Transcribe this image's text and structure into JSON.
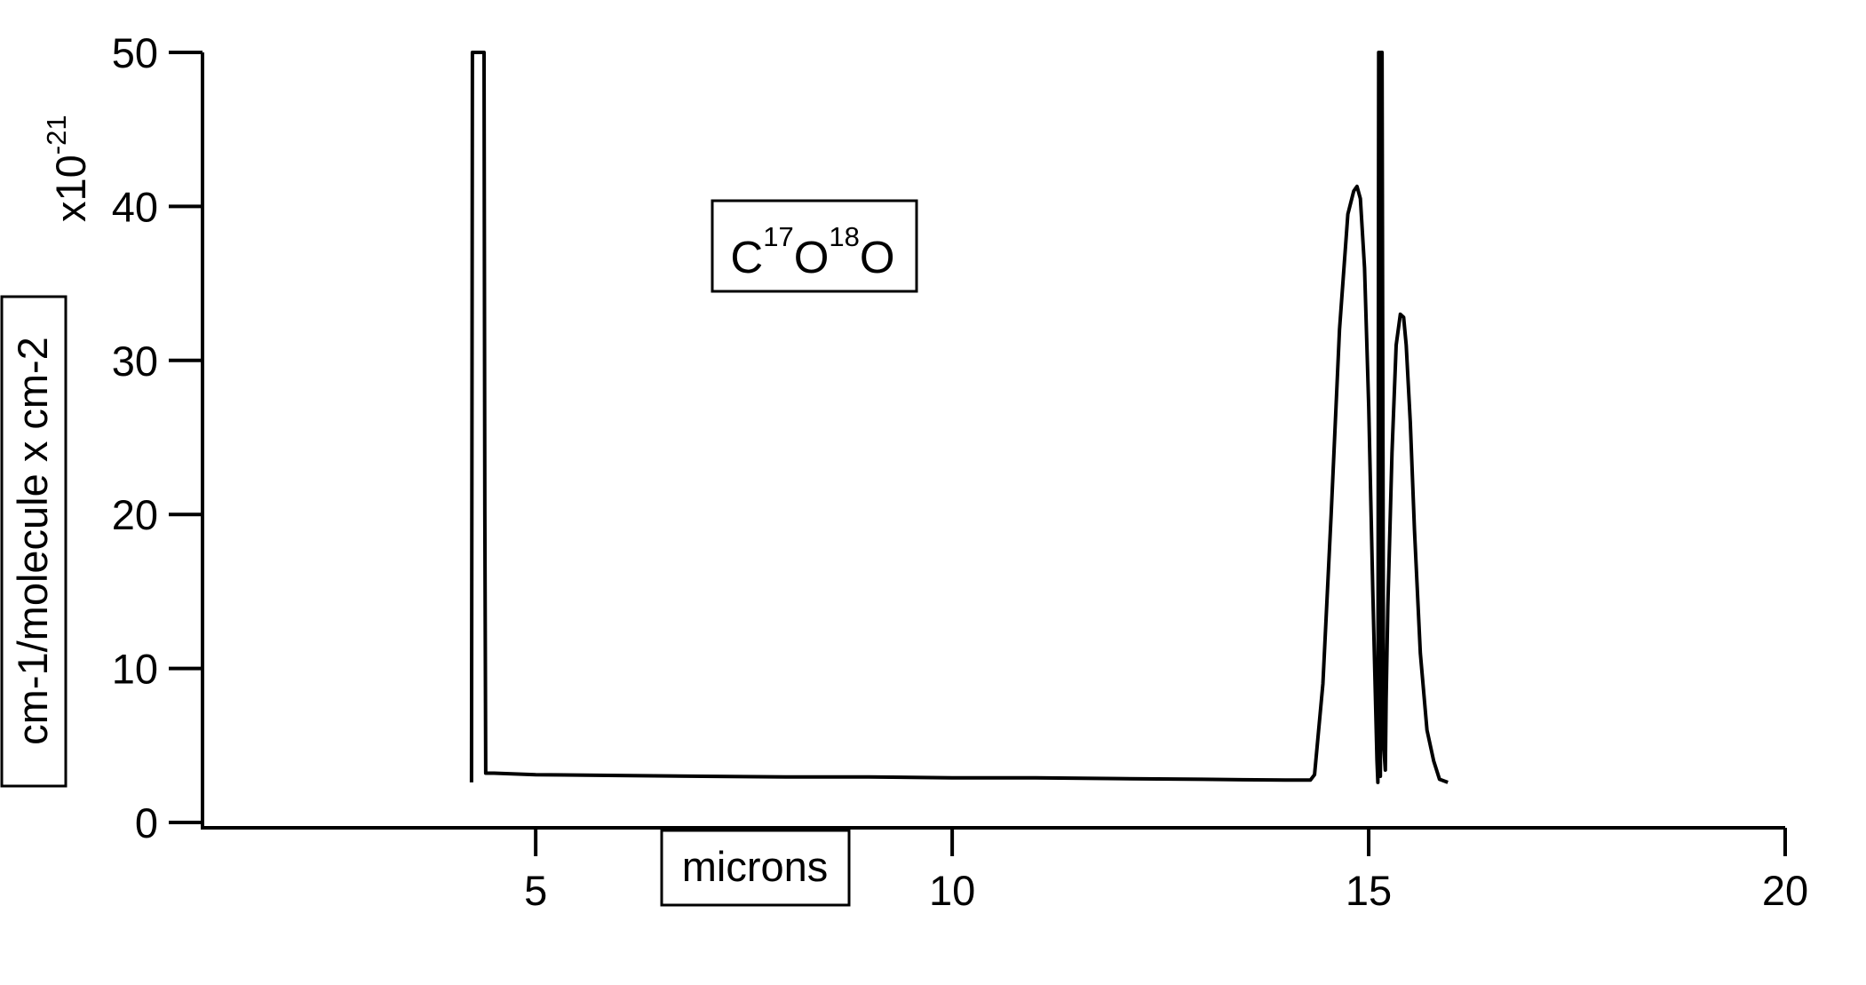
{
  "chart_data": {
    "type": "line",
    "title": "",
    "xlabel": "microns",
    "ylabel": "cm-1/molecule x cm-2",
    "y_scale_exponent": "x10",
    "y_scale_exponent_power": "-21",
    "xlim": [
      1,
      20
    ],
    "ylim": [
      0,
      50
    ],
    "x_ticks": [
      5,
      10,
      15,
      20
    ],
    "y_ticks": [
      0,
      10,
      20,
      30,
      40,
      50
    ],
    "grid": false,
    "legend": {
      "placement": "top-center",
      "parts": [
        "C",
        "17",
        "O",
        "18",
        "O"
      ]
    },
    "series": [
      {
        "color": "#000000",
        "x": [
          4.23,
          4.24,
          4.26,
          4.37,
          4.38,
          4.39,
          4.4,
          4.5,
          5.0,
          6.0,
          7.0,
          8.0,
          9.0,
          10.0,
          11.0,
          12.0,
          13.0,
          14.0,
          14.3,
          14.35,
          14.45,
          14.55,
          14.65,
          14.75,
          14.82,
          14.86,
          14.9,
          14.95,
          15.0,
          15.05,
          15.1,
          15.11,
          15.12,
          15.13,
          15.14,
          15.15,
          15.16,
          15.18,
          15.2,
          15.21,
          15.23,
          15.28,
          15.33,
          15.38,
          15.42,
          15.45,
          15.5,
          15.55,
          15.62,
          15.7,
          15.78,
          15.85,
          15.95
        ],
        "y": [
          2.6,
          50,
          50,
          50,
          50,
          20,
          3.2,
          3.2,
          3.1,
          3.05,
          3.0,
          2.95,
          2.95,
          2.9,
          2.9,
          2.85,
          2.8,
          2.75,
          2.75,
          3.1,
          9.0,
          20.0,
          32.0,
          39.5,
          41.0,
          41.3,
          40.5,
          36.0,
          27.0,
          15.0,
          4.0,
          2.6,
          50,
          50,
          3.0,
          50,
          50,
          5.0,
          3.4,
          8.0,
          14.0,
          24.0,
          31.0,
          33.0,
          32.8,
          31.0,
          26.0,
          19.0,
          11.0,
          6.0,
          4.0,
          2.8,
          2.6
        ]
      }
    ]
  }
}
